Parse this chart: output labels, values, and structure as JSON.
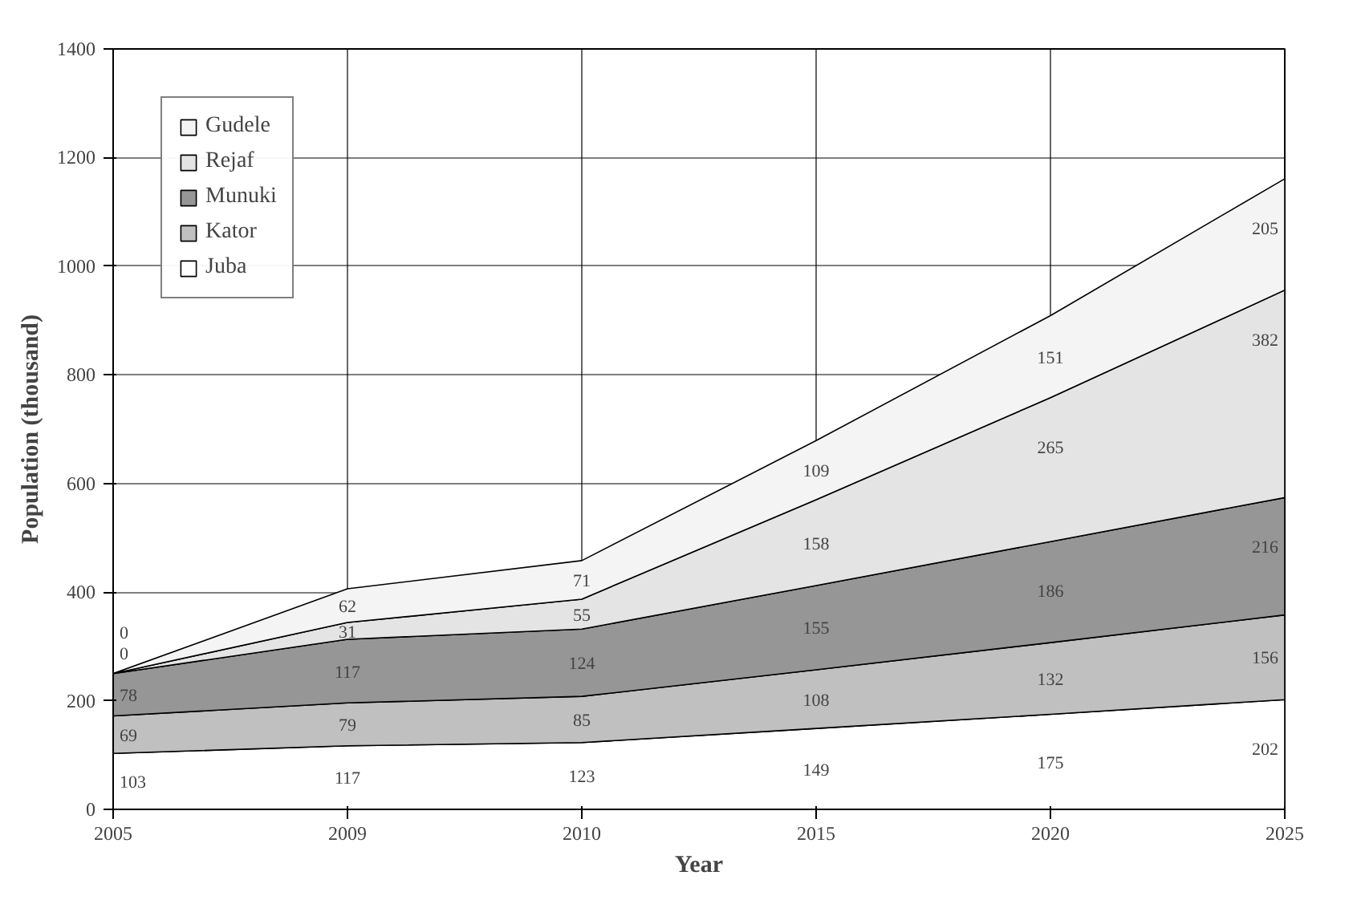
{
  "chart_data": {
    "type": "area",
    "stacked": true,
    "xlabel": "Year",
    "ylabel": "Population (thousand)",
    "categories": [
      "2005",
      "2009",
      "2010",
      "2015",
      "2020",
      "2025"
    ],
    "series": [
      {
        "name": "Juba",
        "color": "#ffffff",
        "values": [
          103,
          117,
          123,
          149,
          175,
          202
        ]
      },
      {
        "name": "Kator",
        "color": "#c0c0c0",
        "values": [
          69,
          79,
          85,
          108,
          132,
          156
        ]
      },
      {
        "name": "Munuki",
        "color": "#969696",
        "values": [
          78,
          117,
          124,
          155,
          186,
          216
        ]
      },
      {
        "name": "Rejaf",
        "color": "#e4e4e4",
        "values": [
          0,
          31,
          55,
          158,
          265,
          382
        ]
      },
      {
        "name": "Gudele",
        "color": "#f4f4f4",
        "values": [
          0,
          62,
          71,
          109,
          151,
          205
        ]
      }
    ],
    "ylim": [
      0,
      1400
    ],
    "yticks": [
      0,
      200,
      400,
      600,
      800,
      1000,
      1200,
      1400
    ],
    "grid": true,
    "legend": "top left",
    "data_labels": true
  }
}
